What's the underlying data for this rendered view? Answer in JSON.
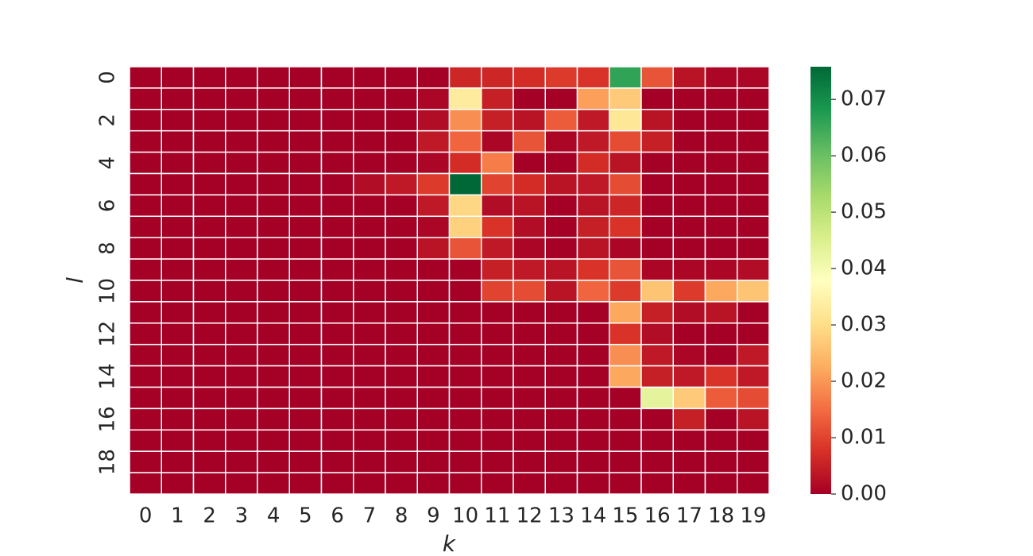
{
  "chart_data": {
    "type": "heatmap",
    "x_label": "k",
    "y_label": "l",
    "x_categories": [
      "0",
      "1",
      "2",
      "3",
      "4",
      "5",
      "6",
      "7",
      "8",
      "9",
      "10",
      "11",
      "12",
      "13",
      "14",
      "15",
      "16",
      "17",
      "18",
      "19"
    ],
    "y_categories": [
      "0",
      null,
      "2",
      null,
      "4",
      null,
      "6",
      null,
      "8",
      null,
      "10",
      null,
      "12",
      null,
      "14",
      null,
      "16",
      null,
      "18",
      null
    ],
    "values": [
      [
        0,
        0,
        0,
        0,
        0,
        0,
        0,
        0,
        0,
        0,
        0.006,
        0.006,
        0.007,
        0.009,
        0.008,
        0.066,
        0.012,
        0.003,
        0.001,
        0.001
      ],
      [
        0,
        0,
        0,
        0,
        0,
        0,
        0,
        0,
        0,
        0.001,
        0.033,
        0.005,
        0,
        0,
        0.021,
        0.027,
        0,
        0,
        0,
        0
      ],
      [
        0,
        0,
        0,
        0,
        0,
        0,
        0,
        0,
        0,
        0.002,
        0.019,
        0.005,
        0.003,
        0.013,
        0.004,
        0.032,
        0.003,
        0,
        0,
        0
      ],
      [
        0,
        0,
        0,
        0,
        0,
        0,
        0,
        0,
        0,
        0.004,
        0.014,
        0.001,
        0.012,
        0.001,
        0.004,
        0.011,
        0.005,
        0,
        0,
        0
      ],
      [
        0,
        0,
        0,
        0,
        0,
        0,
        0,
        0,
        0,
        0.001,
        0.007,
        0.017,
        0,
        0,
        0.007,
        0.003,
        0,
        0,
        0,
        0
      ],
      [
        0,
        0,
        0,
        0,
        0,
        0,
        0,
        0.002,
        0.004,
        0.009,
        0.0758,
        0.01,
        0.007,
        0.003,
        0.004,
        0.011,
        0,
        0,
        0,
        0
      ],
      [
        0,
        0,
        0,
        0,
        0,
        0,
        0,
        0,
        0,
        0.004,
        0.029,
        0.002,
        0.003,
        0,
        0.003,
        0.006,
        0,
        0,
        0,
        0
      ],
      [
        0,
        0,
        0,
        0,
        0,
        0,
        0,
        0,
        0,
        0.001,
        0.028,
        0.008,
        0.002,
        0,
        0.005,
        0.008,
        0,
        0,
        0,
        0
      ],
      [
        0,
        0,
        0,
        0,
        0,
        0,
        0,
        0,
        0,
        0.003,
        0.012,
        0.004,
        0.001,
        0,
        0.003,
        0.001,
        0,
        0,
        0,
        0
      ],
      [
        0,
        0,
        0,
        0,
        0,
        0,
        0,
        0,
        0,
        0,
        0,
        0.005,
        0.004,
        0.003,
        0.008,
        0.012,
        0.001,
        0.001,
        0.001,
        0.002
      ],
      [
        0,
        0,
        0,
        0,
        0,
        0,
        0,
        0,
        0,
        0,
        0,
        0.01,
        0.011,
        0.003,
        0.014,
        0.009,
        0.026,
        0.009,
        0.022,
        0.026
      ],
      [
        0,
        0,
        0,
        0,
        0,
        0,
        0,
        0,
        0,
        0,
        0,
        0,
        0,
        0,
        0,
        0.022,
        0.005,
        0.002,
        0.003,
        0
      ],
      [
        0,
        0,
        0,
        0,
        0,
        0,
        0,
        0,
        0,
        0,
        0,
        0,
        0,
        0,
        0,
        0.008,
        0.002,
        0,
        0,
        0
      ],
      [
        0,
        0,
        0,
        0,
        0,
        0,
        0,
        0,
        0,
        0,
        0,
        0,
        0,
        0,
        0,
        0.019,
        0.004,
        0.001,
        0,
        0.004
      ],
      [
        0,
        0,
        0,
        0,
        0,
        0,
        0,
        0,
        0,
        0,
        0,
        0,
        0,
        0,
        0,
        0.022,
        0.005,
        0.004,
        0.008,
        0.004
      ],
      [
        0,
        0,
        0,
        0,
        0,
        0,
        0,
        0,
        0,
        0,
        0,
        0,
        0,
        0,
        0,
        0,
        0.043,
        0.027,
        0.013,
        0.011
      ],
      [
        0,
        0,
        0,
        0,
        0,
        0,
        0,
        0,
        0,
        0,
        0,
        0,
        0,
        0,
        0,
        0,
        0,
        0.005,
        0,
        0.003
      ],
      [
        0,
        0,
        0,
        0,
        0,
        0,
        0,
        0,
        0,
        0,
        0,
        0,
        0,
        0,
        0,
        0,
        0,
        0,
        0,
        0
      ],
      [
        0,
        0,
        0,
        0,
        0,
        0,
        0,
        0,
        0,
        0,
        0,
        0,
        0,
        0,
        0,
        0,
        0,
        0,
        0,
        0
      ],
      [
        0,
        0,
        0,
        0,
        0,
        0,
        0,
        0,
        0,
        0,
        0,
        0,
        0,
        0,
        0,
        0,
        0,
        0,
        0,
        0
      ]
    ],
    "colormap": [
      "#a50026",
      "#d73027",
      "#f46d43",
      "#fdae61",
      "#fee08b",
      "#ffffbf",
      "#d9ef8b",
      "#a6d96a",
      "#66bd63",
      "#1a9850",
      "#006837"
    ],
    "clim": [
      0,
      0.0758
    ],
    "cticks": [
      {
        "value": 0,
        "label": "0.00"
      },
      {
        "value": 0.01,
        "label": "0.01"
      },
      {
        "value": 0.02,
        "label": "0.02"
      },
      {
        "value": 0.03,
        "label": "0.03"
      },
      {
        "value": 0.04,
        "label": "0.04"
      },
      {
        "value": 0.05,
        "label": "0.05"
      },
      {
        "value": 0.06,
        "label": "0.06"
      },
      {
        "value": 0.07,
        "label": "0.07"
      }
    ]
  }
}
